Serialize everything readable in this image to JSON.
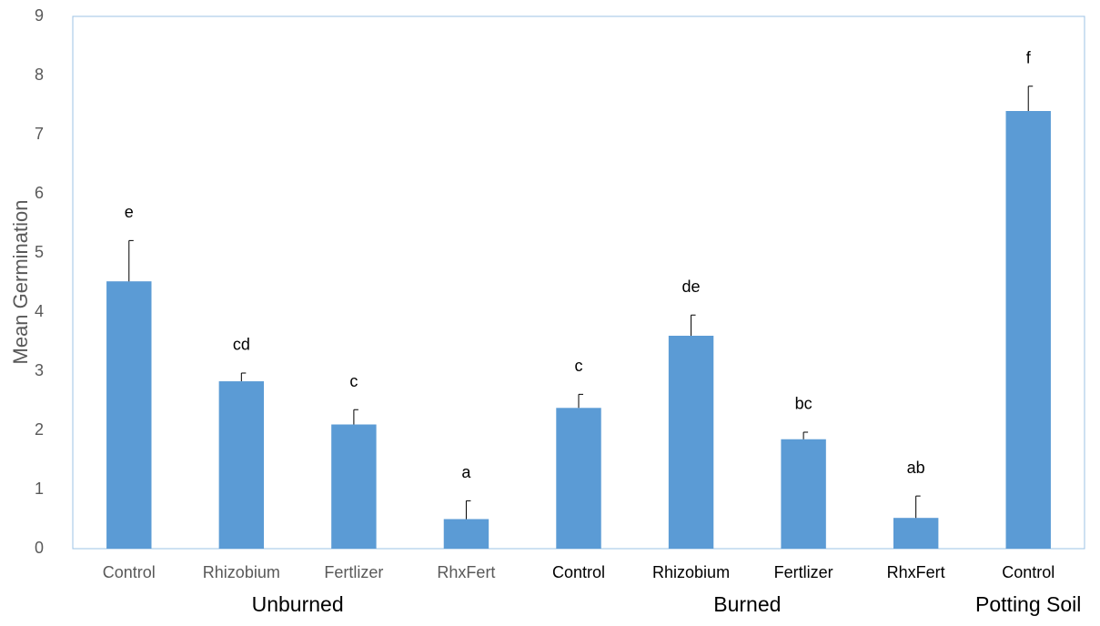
{
  "chart_data": {
    "type": "bar",
    "y_label": "Mean Germination",
    "categories": [
      "Control",
      "Rhizobium",
      "Fertlizer",
      "RhxFert",
      "Control",
      "Rhizobium",
      "Fertlizer",
      "RhxFert",
      "Control"
    ],
    "category_label_colors": [
      "#595959",
      "#595959",
      "#595959",
      "#595959",
      "#000000",
      "#000000",
      "#000000",
      "#000000",
      "#000000"
    ],
    "values": [
      4.52,
      2.83,
      2.1,
      0.5,
      2.38,
      3.6,
      1.85,
      0.52,
      7.4
    ],
    "errors": [
      0.69,
      0.14,
      0.25,
      0.31,
      0.23,
      0.35,
      0.12,
      0.37,
      0.42
    ],
    "annotations": [
      "e",
      "cd",
      "c",
      "a",
      "c",
      "de",
      "bc",
      "ab",
      "f"
    ],
    "groups": [
      "Unburned",
      "Burned",
      "Potting Soil"
    ],
    "color": "#5b9bd5",
    "ylim": [
      0,
      9
    ],
    "yticks": [
      0,
      1,
      2,
      3,
      4,
      5,
      6,
      7,
      8,
      9
    ],
    "grid": false
  }
}
